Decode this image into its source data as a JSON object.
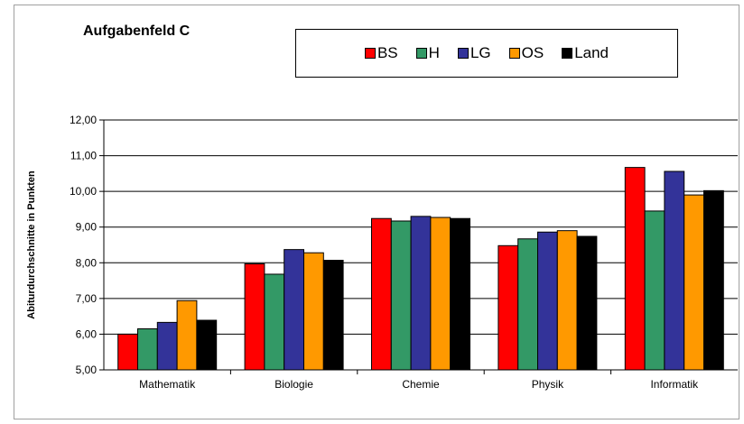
{
  "title": "Aufgabenfeld C",
  "legend": [
    "BS",
    "H",
    "LG",
    "OS",
    "Land"
  ],
  "chart_data": {
    "type": "bar",
    "categories": [
      "Mathematik",
      "Biologie",
      "Chemie",
      "Physik",
      "Informatik"
    ],
    "series": [
      {
        "name": "BS",
        "color": "#ff0000",
        "values": [
          6.0,
          7.97,
          9.24,
          8.48,
          10.67
        ]
      },
      {
        "name": "H",
        "color": "#339966",
        "values": [
          6.15,
          7.68,
          9.17,
          8.67,
          9.45
        ]
      },
      {
        "name": "LG",
        "color": "#333399",
        "values": [
          6.33,
          8.37,
          9.3,
          8.86,
          10.56
        ]
      },
      {
        "name": "OS",
        "color": "#ff9900",
        "values": [
          6.94,
          8.28,
          9.27,
          8.9,
          9.9
        ]
      },
      {
        "name": "Land",
        "color": "#000000",
        "values": [
          6.39,
          8.07,
          9.24,
          8.74,
          10.02
        ]
      }
    ],
    "ylabel": "Abiturdurchschnitte in Punkten",
    "ylim": [
      5,
      12
    ],
    "yticks": [
      "5,00",
      "6,00",
      "7,00",
      "8,00",
      "9,00",
      "10,00",
      "11,00",
      "12,00"
    ],
    "grid": true,
    "legend_position": "top"
  }
}
